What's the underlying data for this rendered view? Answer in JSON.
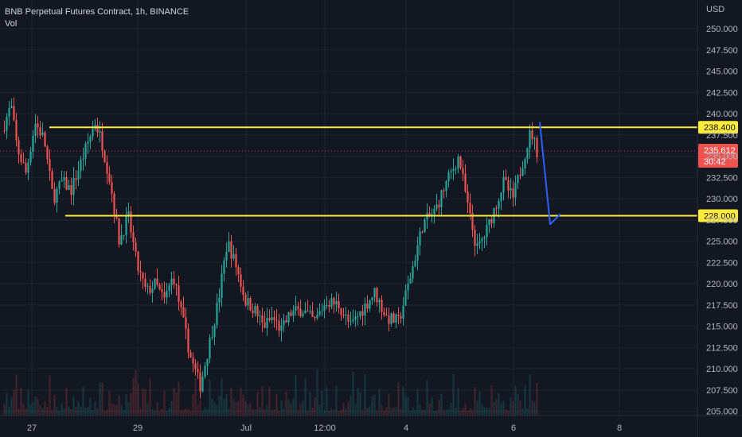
{
  "header": {
    "title": "BNB Perpetual Futures Contract, 1h, BINANCE",
    "vol_label": "Vol"
  },
  "colors": {
    "background": "#131722",
    "grid": "#1f2431",
    "up": "#26a69a",
    "down": "#ef5350",
    "level_line": "#ffeb3b",
    "arrow": "#2962ff",
    "axis_text": "#b2b5be"
  },
  "chart_data": {
    "type": "candlestick",
    "title": "BNB Perpetual Futures Contract, 1h, BINANCE",
    "price_axis": {
      "unit": "USD",
      "range": [
        204.5,
        251.5
      ],
      "ticks": [
        "205.000",
        "207.500",
        "210.000",
        "212.500",
        "215.000",
        "217.500",
        "220.000",
        "222.500",
        "225.000",
        "227.500",
        "230.000",
        "232.500",
        "235.000",
        "237.500",
        "240.000",
        "242.500",
        "245.000",
        "247.500",
        "250.000"
      ]
    },
    "time_axis": {
      "ticks": [
        "27",
        "29",
        "Jul",
        "12:00",
        "4",
        "6",
        "8"
      ]
    },
    "levels": [
      {
        "label": "238.400",
        "value": 238.4
      },
      {
        "label": "228.000",
        "value": 228.0
      }
    ],
    "last_price": {
      "label": "235.612",
      "countdown": "30:42",
      "value": 235.612
    },
    "projection": {
      "description": "drawn arrow from ~239 down to ~227 then up",
      "points": [
        [
          239.0,
          0
        ],
        [
          227.0,
          1
        ],
        [
          228.2,
          2
        ]
      ]
    },
    "price_path": [
      [
        0,
        238.0
      ],
      [
        0.03,
        241.0
      ],
      [
        0.05,
        236.0
      ],
      [
        0.08,
        233.0
      ],
      [
        0.11,
        239.0
      ],
      [
        0.14,
        237.0
      ],
      [
        0.17,
        230.0
      ],
      [
        0.2,
        232.0
      ],
      [
        0.23,
        231.0
      ],
      [
        0.25,
        233.0
      ],
      [
        0.28,
        236.0
      ],
      [
        0.31,
        239.0
      ],
      [
        0.33,
        237.0
      ],
      [
        0.36,
        232.0
      ],
      [
        0.39,
        225.0
      ],
      [
        0.42,
        228.0
      ],
      [
        0.45,
        222.0
      ],
      [
        0.48,
        219.0
      ],
      [
        0.51,
        220.0
      ],
      [
        0.54,
        218.0
      ],
      [
        0.57,
        221.0
      ],
      [
        0.6,
        216.0
      ],
      [
        0.63,
        211.0
      ],
      [
        0.66,
        208.0
      ],
      [
        0.69,
        213.0
      ],
      [
        0.72,
        218.0
      ],
      [
        0.75,
        225.0
      ],
      [
        0.78,
        222.0
      ],
      [
        0.81,
        218.0
      ],
      [
        0.84,
        217.0
      ],
      [
        0.87,
        215.0
      ],
      [
        0.9,
        216.0
      ],
      [
        0.93,
        214.5
      ],
      [
        0.96,
        216.5
      ],
      [
        1.0,
        217.0
      ],
      [
        1.04,
        215.5
      ],
      [
        1.08,
        218.0
      ],
      [
        1.12,
        217.5
      ],
      [
        1.16,
        215.0
      ],
      [
        1.2,
        217.0
      ],
      [
        1.24,
        219.0
      ],
      [
        1.28,
        216.0
      ],
      [
        1.32,
        215.5
      ],
      [
        1.36,
        221.0
      ],
      [
        1.4,
        227.0
      ],
      [
        1.44,
        228.5
      ],
      [
        1.48,
        232.0
      ],
      [
        1.52,
        235.0
      ],
      [
        1.55,
        229.0
      ],
      [
        1.58,
        224.0
      ],
      [
        1.61,
        226.0
      ],
      [
        1.64,
        229.0
      ],
      [
        1.67,
        232.0
      ],
      [
        1.7,
        230.0
      ],
      [
        1.73,
        234.0
      ],
      [
        1.76,
        238.0
      ],
      [
        1.78,
        235.6
      ]
    ],
    "volume": {
      "description": "faint volume histogram along the bottom"
    }
  }
}
